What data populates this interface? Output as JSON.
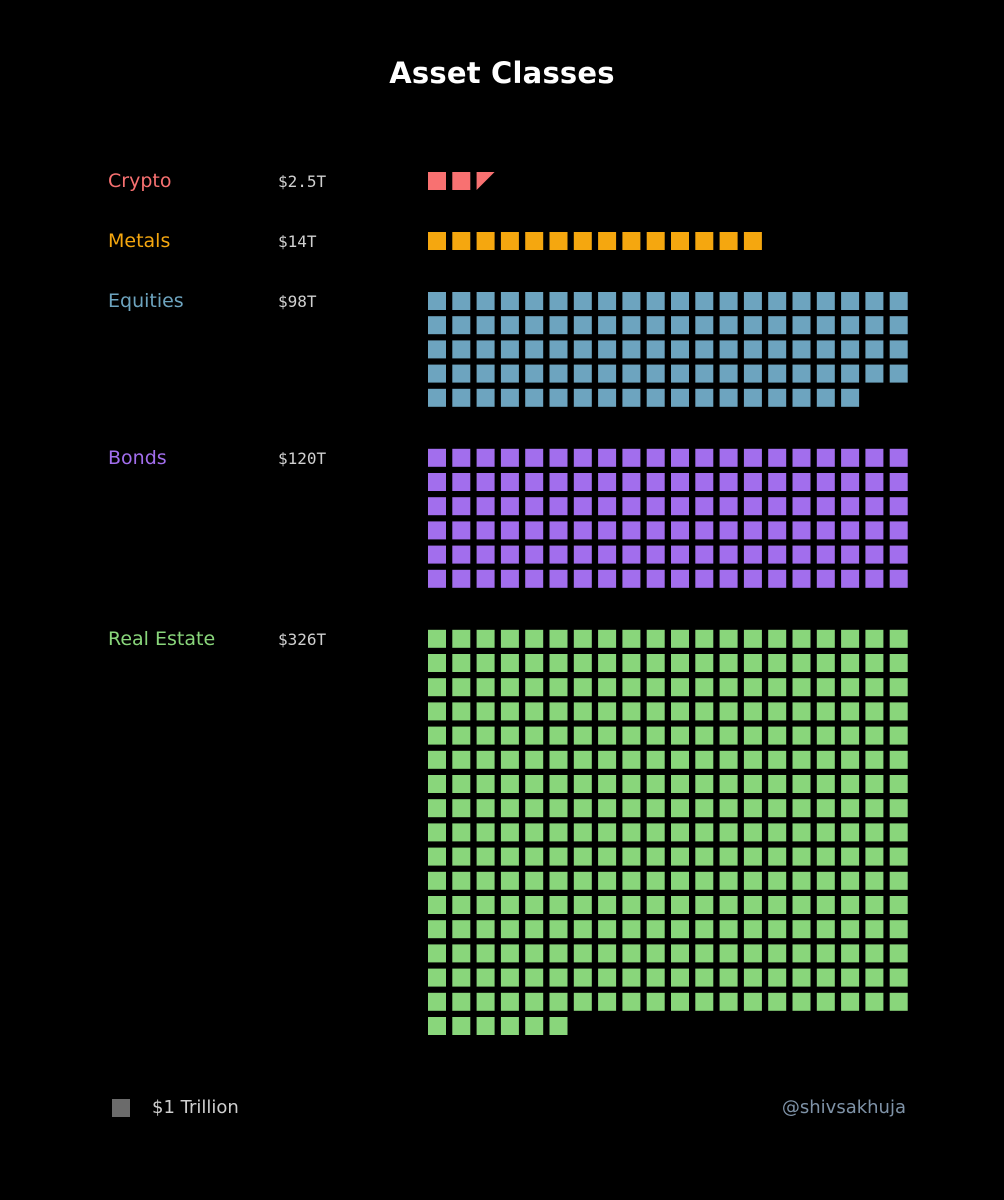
{
  "title": "Asset Classes",
  "legend": {
    "unit_label": "$1 Trillion",
    "swatch_color": "#6b6b6b"
  },
  "credit": "@shivsakhuja",
  "chart_data": {
    "type": "waffle",
    "title": "Asset Classes",
    "unit": "$1 Trillion per square",
    "items": [
      {
        "name": "Crypto",
        "value_label": "$2.5T",
        "value": 2.5,
        "color": "#f87171"
      },
      {
        "name": "Metals",
        "value_label": "$14T",
        "value": 14,
        "color": "#f5a70f"
      },
      {
        "name": "Equities",
        "value_label": "$98T",
        "value": 98,
        "color": "#6da4bf"
      },
      {
        "name": "Bonds",
        "value_label": "$120T",
        "value": 120,
        "color": "#a26eed"
      },
      {
        "name": "Real Estate",
        "value_label": "$326T",
        "value": 326,
        "color": "#89d67b"
      }
    ]
  }
}
